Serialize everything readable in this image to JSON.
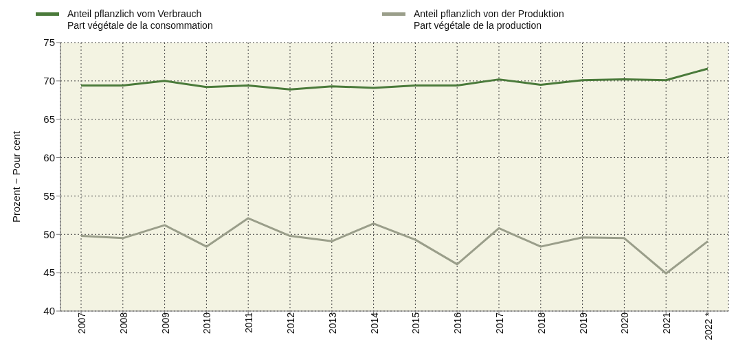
{
  "chart_data": {
    "type": "line",
    "ylabel": "Prozent   ~   Pour cent",
    "categories": [
      "2007",
      "2008",
      "2009",
      "2010",
      "2011",
      "2012",
      "2013",
      "2014",
      "2015",
      "2016",
      "2017",
      "2018",
      "2019",
      "2020",
      "2021",
      "2022 *"
    ],
    "series": [
      {
        "name": "Anteil pflanzlich vom Verbrauch\nPart végétale de la consommation",
        "color": "#4a7a3a",
        "values": [
          69.4,
          69.4,
          70.0,
          69.2,
          69.4,
          68.9,
          69.3,
          69.1,
          69.4,
          69.4,
          70.2,
          69.5,
          70.1,
          70.2,
          70.1,
          71.6
        ]
      },
      {
        "name": "Anteil pflanzlich von der Produktion\nPart végétale de la production",
        "color": "#9a9e8a",
        "values": [
          49.8,
          49.5,
          51.2,
          48.4,
          52.1,
          49.8,
          49.1,
          51.4,
          49.3,
          46.1,
          50.8,
          48.4,
          49.6,
          49.5,
          44.9,
          49.1
        ]
      }
    ],
    "ylim": [
      40,
      75
    ],
    "yticks": [
      40,
      45,
      50,
      55,
      60,
      65,
      70,
      75
    ],
    "grid": true,
    "legend": "top",
    "marker": "none",
    "line_style": "solid"
  }
}
